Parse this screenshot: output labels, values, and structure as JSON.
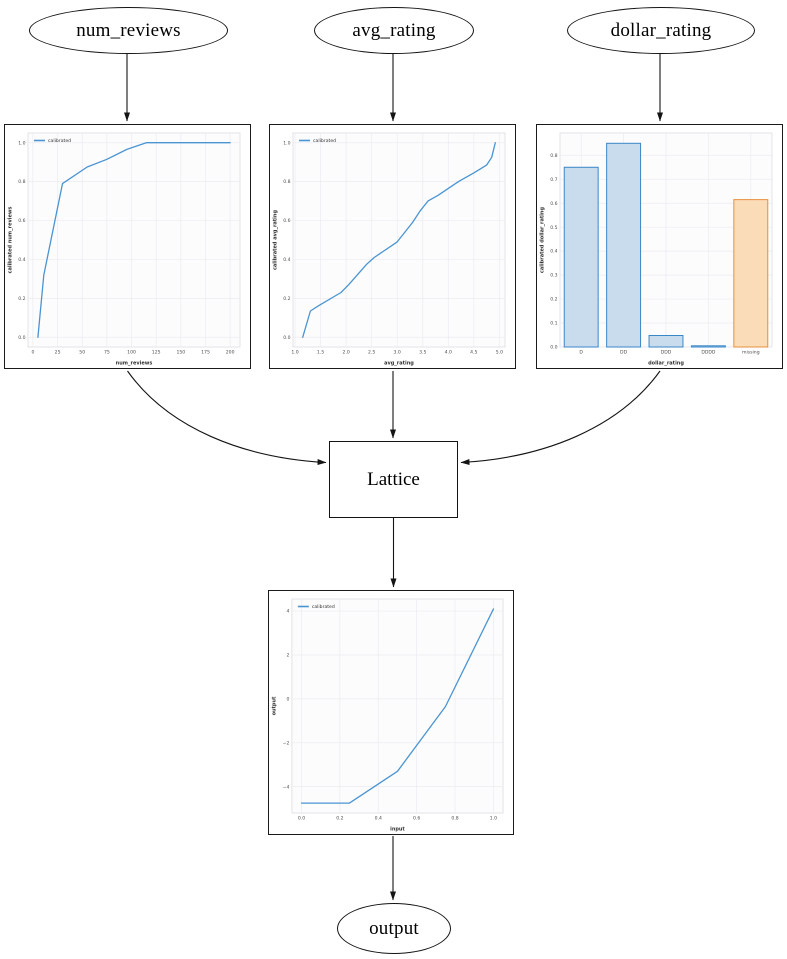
{
  "diagram": {
    "input_nodes": [
      {
        "label": "num_reviews"
      },
      {
        "label": "avg_rating"
      },
      {
        "label": "dollar_rating"
      }
    ],
    "lattice_node": {
      "label": "Lattice"
    },
    "output_node": {
      "label": "output"
    }
  },
  "colors": {
    "edge": "#141414",
    "line_blue": "#4a94d2",
    "bar_blue_fill": "#c9dcee",
    "bar_blue_edge": "#3a87c8",
    "bar_orange_fill": "#fbdcb9",
    "bar_orange_edge": "#e8903a",
    "grid": "#ebebf2",
    "axes_border": "#dcdce4",
    "tick_text": "#4d4d4d",
    "label_text": "#333333",
    "legend_text": "#333333"
  },
  "chart_data": [
    {
      "type": "line",
      "title": "",
      "xlabel": "num_reviews",
      "ylabel": "calibrated num_reviews",
      "legend": [
        "calibrated"
      ],
      "legend_position": "upper left",
      "grid": true,
      "xlim": [
        -5,
        210
      ],
      "ylim": [
        -0.05,
        1.05
      ],
      "xtick_vals": [
        0,
        25,
        50,
        75,
        100,
        125,
        150,
        175,
        200
      ],
      "xtick_labels": [
        "0",
        "25",
        "50",
        "75",
        "100",
        "125",
        "150",
        "175",
        "200"
      ],
      "ytick_vals": [
        0.0,
        0.2,
        0.4,
        0.6,
        0.8,
        1.0
      ],
      "ytick_labels": [
        "0.0",
        "0.2",
        "0.4",
        "0.6",
        "0.8",
        "1.0"
      ],
      "series": [
        {
          "name": "calibrated",
          "x": [
            5,
            11,
            30,
            55,
            75,
            95,
            115,
            200
          ],
          "y": [
            0.0,
            0.32,
            0.79,
            0.875,
            0.915,
            0.965,
            1.0,
            1.0
          ]
        }
      ]
    },
    {
      "type": "line",
      "title": "",
      "xlabel": "avg_rating",
      "ylabel": "calibrated avg_rating",
      "legend": [
        "calibrated"
      ],
      "legend_position": "upper left",
      "grid": true,
      "xlim": [
        0.96,
        5.11
      ],
      "ylim": [
        -0.05,
        1.05
      ],
      "xtick_vals": [
        1.0,
        1.5,
        2.0,
        2.5,
        3.0,
        3.5,
        4.0,
        4.5,
        5.0
      ],
      "xtick_labels": [
        "1.0",
        "1.5",
        "2.0",
        "2.5",
        "3.0",
        "3.5",
        "4.0",
        "4.5",
        "5.0"
      ],
      "ytick_vals": [
        0.0,
        0.2,
        0.4,
        0.6,
        0.8,
        1.0
      ],
      "ytick_labels": [
        "0.0",
        "0.2",
        "0.4",
        "0.6",
        "0.8",
        "1.0"
      ],
      "series": [
        {
          "name": "calibrated",
          "x": [
            1.15,
            1.3,
            1.45,
            1.9,
            2.05,
            2.4,
            2.55,
            3.0,
            3.3,
            3.45,
            3.6,
            3.8,
            4.2,
            4.5,
            4.75,
            4.85,
            4.92
          ],
          "y": [
            0.0,
            0.135,
            0.16,
            0.23,
            0.27,
            0.375,
            0.41,
            0.49,
            0.59,
            0.65,
            0.7,
            0.73,
            0.8,
            0.845,
            0.885,
            0.925,
            1.0
          ]
        }
      ]
    },
    {
      "type": "bar",
      "title": "",
      "xlabel": "dollar_rating",
      "ylabel": "calibrated dollar_rating",
      "legend": [],
      "grid": true,
      "ylim": [
        0,
        0.893
      ],
      "categories": [
        "D",
        "DD",
        "DDD",
        "DDDD",
        "missing"
      ],
      "values": [
        0.75,
        0.85,
        0.048,
        0.005,
        0.615
      ],
      "bar_colors": [
        "blue",
        "blue",
        "blue",
        "blue",
        "orange"
      ],
      "ytick_vals": [
        0.0,
        0.1,
        0.2,
        0.3,
        0.4,
        0.5,
        0.6,
        0.7,
        0.8
      ],
      "ytick_labels": [
        "0.0",
        "0.1",
        "0.2",
        "0.3",
        "0.4",
        "0.5",
        "0.6",
        "0.7",
        "0.8"
      ]
    },
    {
      "type": "line",
      "title": "",
      "xlabel": "input",
      "ylabel": "output",
      "legend": [
        "calibrated"
      ],
      "legend_position": "upper left",
      "grid": true,
      "xlim": [
        -0.05,
        1.05
      ],
      "ylim": [
        -5.2,
        4.55
      ],
      "xtick_vals": [
        0.0,
        0.2,
        0.4,
        0.6,
        0.8,
        1.0
      ],
      "xtick_labels": [
        "0.0",
        "0.2",
        "0.4",
        "0.6",
        "0.8",
        "1.0"
      ],
      "ytick_vals": [
        -4,
        -2,
        0,
        2,
        4
      ],
      "ytick_labels": [
        "−4",
        "−2",
        "0",
        "2",
        "4"
      ],
      "series": [
        {
          "name": "calibrated",
          "x": [
            0.0,
            0.25,
            0.5,
            0.75,
            1.0
          ],
          "y": [
            -4.75,
            -4.75,
            -3.3,
            -0.35,
            4.1
          ]
        }
      ]
    }
  ]
}
